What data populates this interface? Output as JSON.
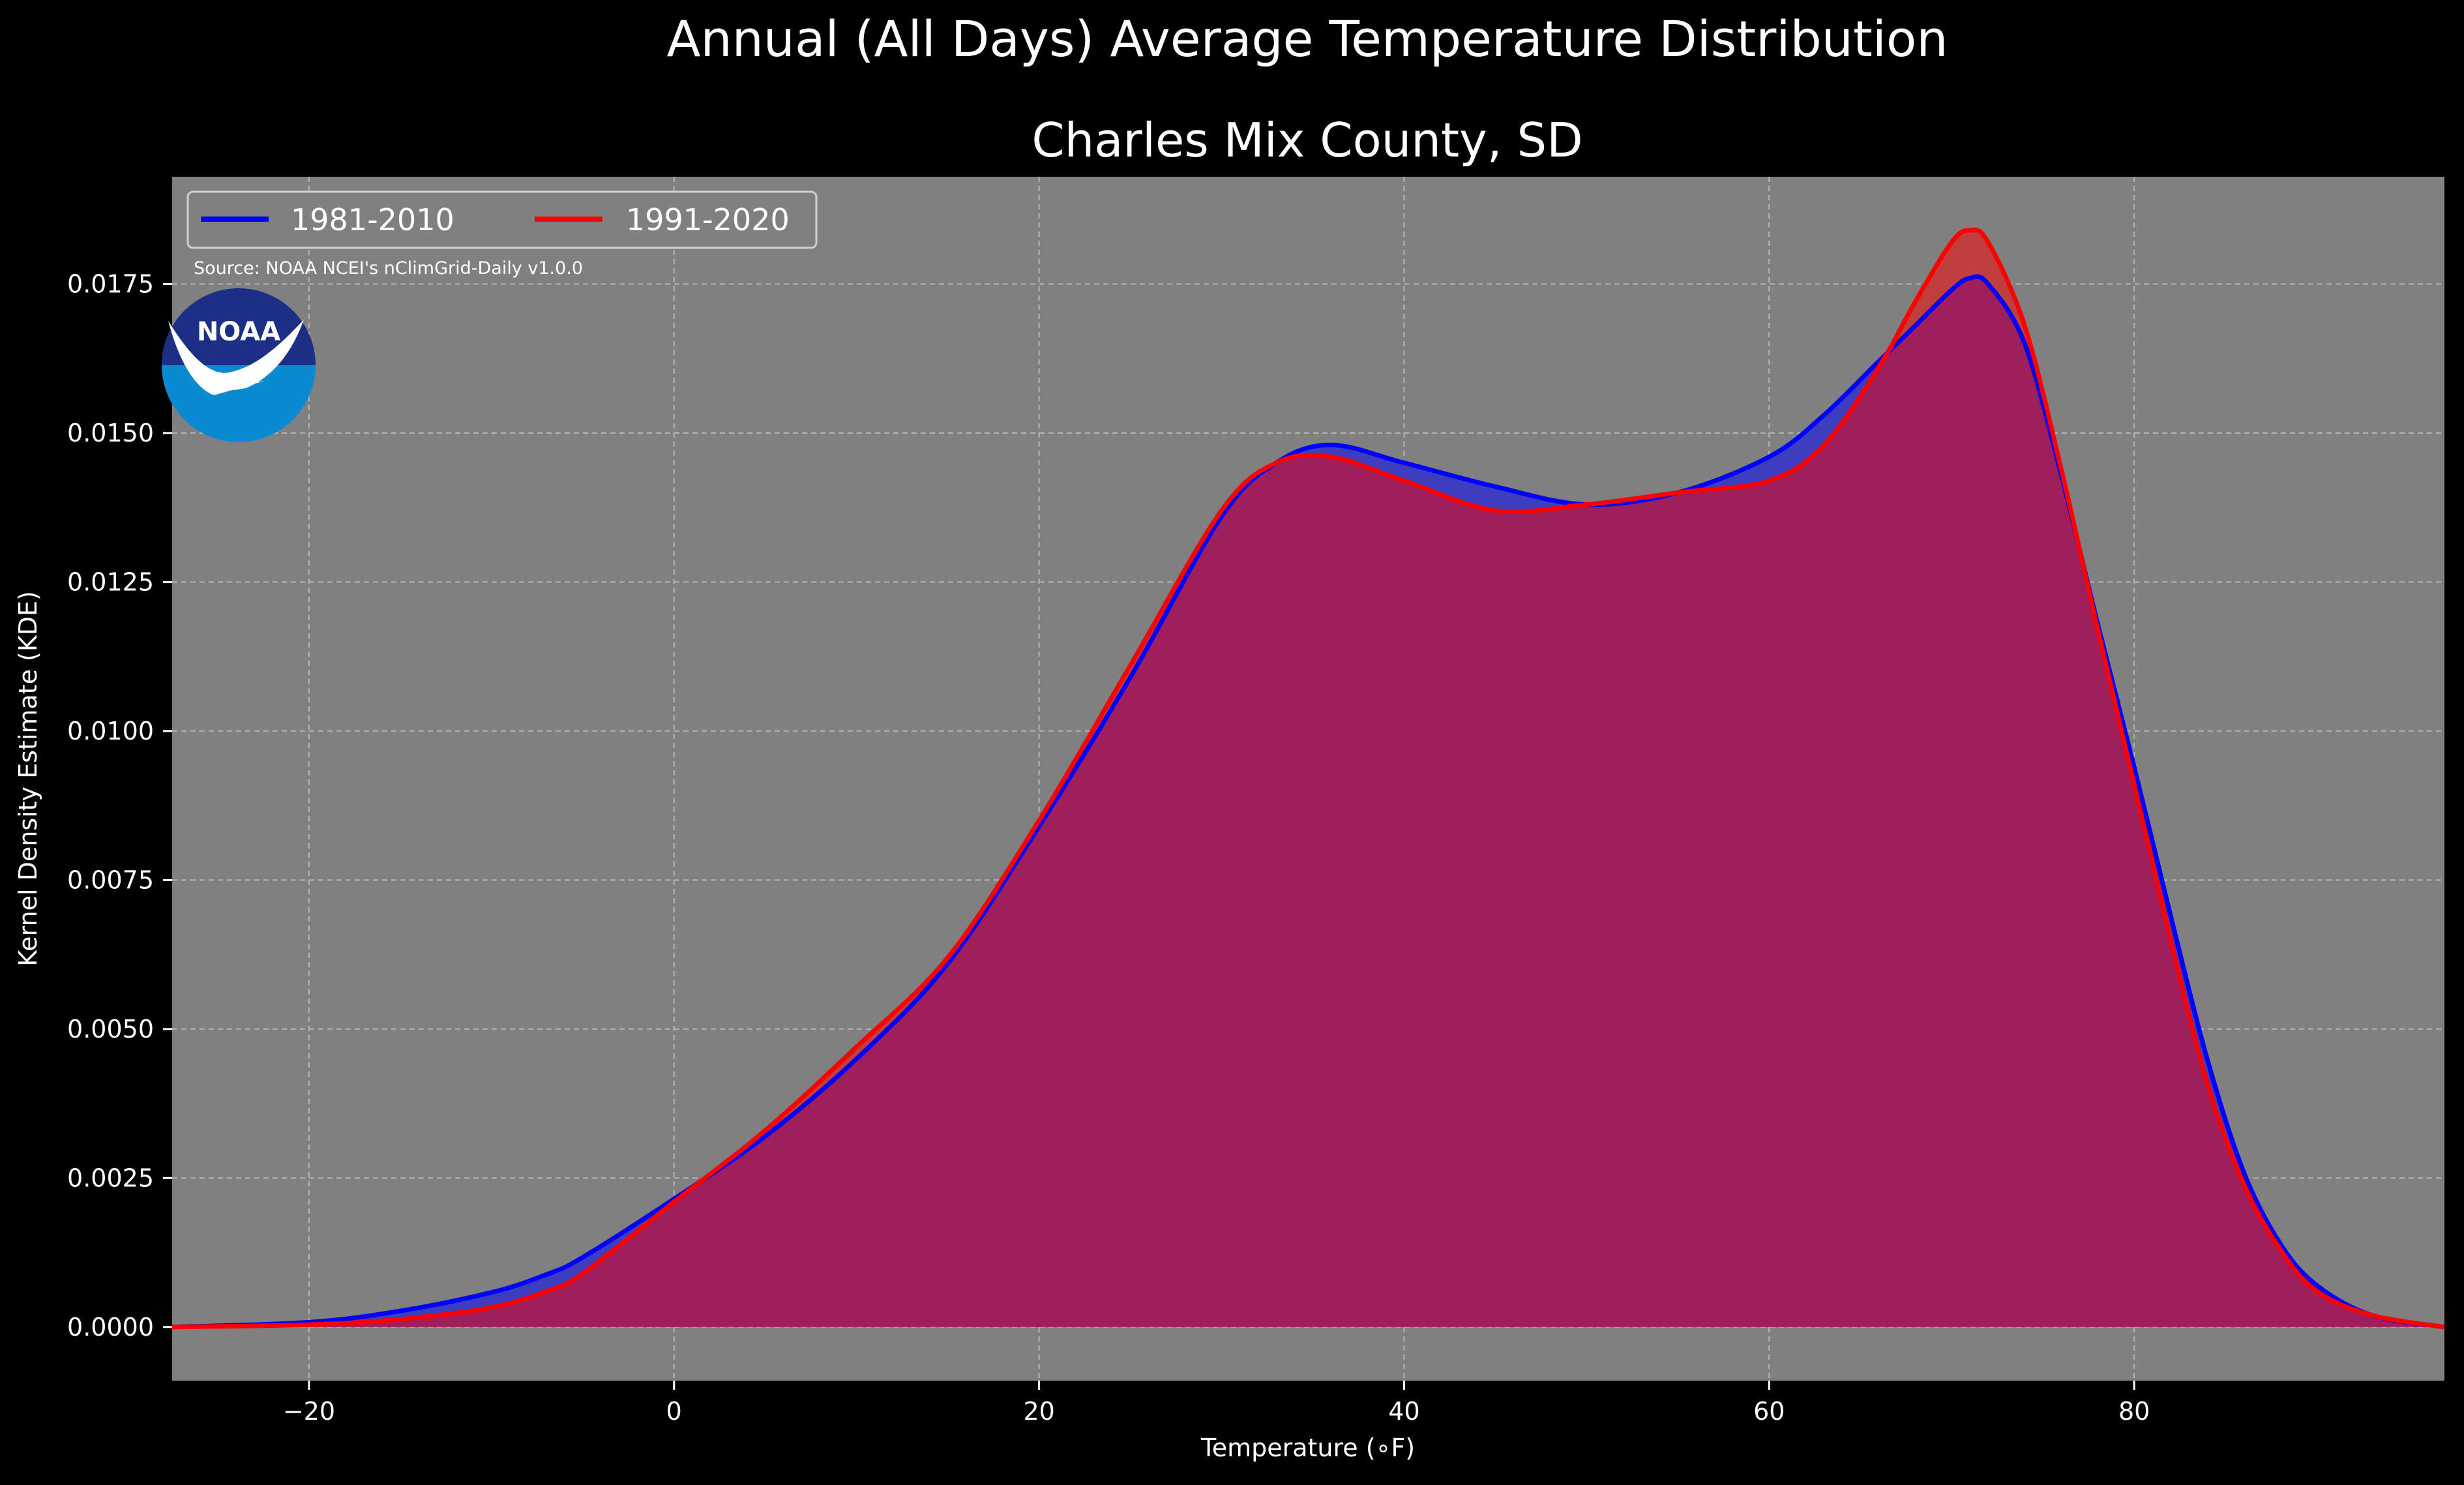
{
  "chart_data": {
    "type": "area",
    "title": "Annual (All Days) Average Temperature Distribution",
    "subtitle": "Charles Mix County, SD",
    "xlabel": "Temperature (∘F)",
    "ylabel": "Kernel Density Estimate (KDE)",
    "source": "Source: NOAA NCEI's nClimGrid-Daily v1.0.0",
    "logo_text": "NOAA",
    "xlim": [
      -27.5,
      97
    ],
    "ylim": [
      -0.0009,
      0.0193
    ],
    "xticks": [
      -20,
      0,
      20,
      40,
      60,
      80
    ],
    "xtick_labels": [
      "−20",
      "0",
      "20",
      "40",
      "60",
      "80"
    ],
    "yticks": [
      0.0,
      0.0025,
      0.005,
      0.0075,
      0.01,
      0.0125,
      0.015,
      0.0175
    ],
    "ytick_labels": [
      "0.0000",
      "0.0025",
      "0.0050",
      "0.0075",
      "0.0100",
      "0.0125",
      "0.0150",
      "0.0175"
    ],
    "grid": true,
    "legend_location": "top-left",
    "background_color": "#808080",
    "figure_color": "#000000",
    "x": [
      -27.5,
      -20,
      -15,
      -10,
      -7,
      -5,
      0,
      5,
      10,
      15,
      20,
      25,
      30,
      33,
      36,
      40,
      45,
      50,
      55,
      60,
      63,
      66,
      68,
      70,
      71,
      72,
      74,
      76,
      78,
      80,
      82,
      84,
      86,
      88,
      90,
      93,
      97
    ],
    "series": [
      {
        "name": "1981-2010",
        "color": "#0000ff",
        "fill": "#3d3dc0",
        "values": [
          0.0,
          8e-05,
          0.00027,
          0.00058,
          0.00088,
          0.00117,
          0.00215,
          0.0032,
          0.0045,
          0.0061,
          0.0084,
          0.0109,
          0.0136,
          0.0145,
          0.0148,
          0.0145,
          0.0141,
          0.0138,
          0.014,
          0.0146,
          0.0153,
          0.0162,
          0.0168,
          0.0174,
          0.0176,
          0.0175,
          0.0165,
          0.0143,
          0.0118,
          0.0094,
          0.0069,
          0.0045,
          0.0026,
          0.0014,
          0.0007,
          0.0002,
          0.0
        ]
      },
      {
        "name": "1991-2020",
        "color": "#ff0000",
        "fill": "#c03e3e",
        "values": [
          0.0,
          4e-05,
          0.00013,
          0.00033,
          0.0006,
          0.0009,
          0.0021,
          0.0033,
          0.0047,
          0.0062,
          0.0085,
          0.0111,
          0.0137,
          0.0145,
          0.0146,
          0.0142,
          0.0137,
          0.0138,
          0.014,
          0.0142,
          0.0148,
          0.0161,
          0.0172,
          0.0182,
          0.0184,
          0.0182,
          0.0168,
          0.0144,
          0.0117,
          0.0091,
          0.0065,
          0.0041,
          0.0024,
          0.0013,
          0.0006,
          0.0002,
          0.0
        ]
      }
    ],
    "overlap_fill": "#9e1f5c"
  }
}
